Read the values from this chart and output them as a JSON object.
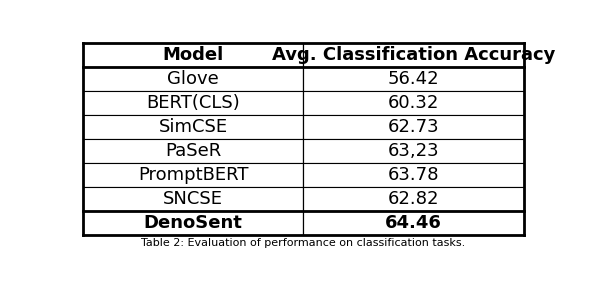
{
  "col_headers": [
    "Model",
    "Avg. Classification Accuracy"
  ],
  "rows": [
    [
      "Glove",
      "56.42"
    ],
    [
      "BERT(CLS)",
      "60.32"
    ],
    [
      "SimCSE",
      "62.73"
    ],
    [
      "PaSeR",
      "63,23"
    ],
    [
      "PromptBERT",
      "63.78"
    ],
    [
      "SNCSE",
      "62.82"
    ]
  ],
  "last_row": [
    "DenoSent",
    "64.46"
  ],
  "fig_width": 5.92,
  "fig_height": 2.84,
  "font_size": 13,
  "header_font_size": 13
}
